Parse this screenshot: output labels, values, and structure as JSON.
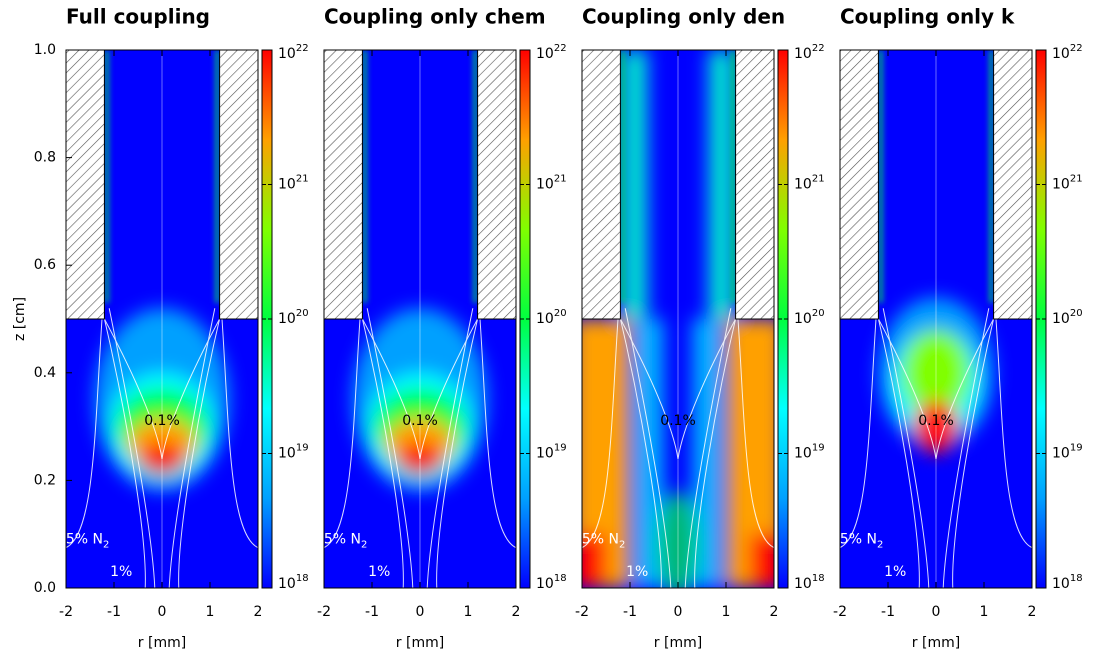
{
  "chart_data": [
    {
      "type": "heatmap",
      "title": "Full coupling",
      "xlabel": "r [mm]",
      "ylabel": "z [cm]",
      "xlim": [
        -2,
        2
      ],
      "ylim": [
        0,
        1
      ],
      "xticks": [
        -2,
        -1,
        0,
        1,
        2
      ],
      "yticks": [
        {
          "value": 0,
          "label": "0.0"
        },
        0.2,
        0.4,
        0.6,
        0.8,
        {
          "value": 1,
          "label": "1.0"
        }
      ],
      "colorbar": {
        "log": true,
        "lim": [
          1e+18,
          1e+22
        ],
        "ticks": [
          {
            "value": 1e+18,
            "label": "10",
            "sup": "18"
          },
          {
            "value": 1e+19,
            "label": "10",
            "sup": "19"
          },
          {
            "value": 1e+20,
            "label": "10",
            "sup": "20"
          },
          {
            "value": 1e+21,
            "label": "10",
            "sup": "21"
          },
          {
            "value": 1e+22,
            "label": "10",
            "sup": "22"
          }
        ],
        "colors": [
          "#0000ff",
          "#00a0ff",
          "#00ffff",
          "#00ff40",
          "#80ff00",
          "#ffa000",
          "#ff0000"
        ]
      },
      "annotations": [
        {
          "text": "0.1%",
          "x": 0,
          "y": 0.31
        },
        {
          "text": "5% N",
          "sub": "2",
          "x": -1.55,
          "y": 0.09
        },
        {
          "text": "1%",
          "x": -0.85,
          "y": 0.03
        }
      ]
    },
    {
      "type": "heatmap",
      "title": "Coupling only chem",
      "xlabel": "r [mm]",
      "xlim": [
        -2,
        2
      ],
      "ylim": [
        0,
        1
      ],
      "xticks": [
        -2,
        -1,
        0,
        1,
        2
      ],
      "colorbar": {
        "log": true,
        "lim": [
          1e+18,
          1e+22
        ],
        "ticks": [
          {
            "value": 1e+18,
            "label": "10",
            "sup": "18"
          },
          {
            "value": 1e+19,
            "label": "10",
            "sup": "19"
          },
          {
            "value": 1e+20,
            "label": "10",
            "sup": "20"
          },
          {
            "value": 1e+21,
            "label": "10",
            "sup": "21"
          },
          {
            "value": 1e+22,
            "label": "10",
            "sup": "22"
          }
        ],
        "colors": [
          "#0000ff",
          "#00a0ff",
          "#00ffff",
          "#00ff40",
          "#80ff00",
          "#ffa000",
          "#ff0000"
        ]
      },
      "annotations": [
        {
          "text": "0.1%",
          "x": 0,
          "y": 0.31
        },
        {
          "text": "5% N",
          "sub": "2",
          "x": -1.55,
          "y": 0.09
        },
        {
          "text": "1%",
          "x": -0.85,
          "y": 0.03
        }
      ]
    },
    {
      "type": "heatmap",
      "title": "Coupling only den",
      "xlabel": "r [mm]",
      "xlim": [
        -2,
        2
      ],
      "ylim": [
        0,
        1
      ],
      "xticks": [
        -2,
        -1,
        0,
        1,
        2
      ],
      "colorbar": {
        "log": true,
        "lim": [
          1e+18,
          1e+22
        ],
        "ticks": [
          {
            "value": 1e+18,
            "label": "10",
            "sup": "18"
          },
          {
            "value": 1e+19,
            "label": "10",
            "sup": "19"
          },
          {
            "value": 1e+20,
            "label": "10",
            "sup": "20"
          },
          {
            "value": 1e+21,
            "label": "10",
            "sup": "21"
          },
          {
            "value": 1e+22,
            "label": "10",
            "sup": "22"
          }
        ],
        "colors": [
          "#0000ff",
          "#00a0ff",
          "#00ffff",
          "#00ff40",
          "#80ff00",
          "#ffa000",
          "#ff0000"
        ]
      },
      "annotations": [
        {
          "text": "0.1%",
          "x": 0,
          "y": 0.31
        },
        {
          "text": "5% N",
          "sub": "2",
          "x": -1.55,
          "y": 0.09
        },
        {
          "text": "1%",
          "x": -0.85,
          "y": 0.03
        }
      ]
    },
    {
      "type": "heatmap",
      "title": "Coupling only k",
      "xlabel": "r [mm]",
      "xlim": [
        -2,
        2
      ],
      "ylim": [
        0,
        1
      ],
      "xticks": [
        -2,
        -1,
        0,
        1,
        2
      ],
      "colorbar": {
        "log": true,
        "lim": [
          1e+18,
          1e+22
        ],
        "ticks": [
          {
            "value": 1e+18,
            "label": "10",
            "sup": "18"
          },
          {
            "value": 1e+19,
            "label": "10",
            "sup": "19"
          },
          {
            "value": 1e+20,
            "label": "10",
            "sup": "20"
          },
          {
            "value": 1e+21,
            "label": "10",
            "sup": "21"
          },
          {
            "value": 1e+22,
            "label": "10",
            "sup": "22"
          }
        ],
        "colors": [
          "#0000ff",
          "#00a0ff",
          "#00ffff",
          "#00ff40",
          "#80ff00",
          "#ffa000",
          "#ff0000"
        ]
      },
      "annotations": [
        {
          "text": "0.1%",
          "x": 0,
          "y": 0.31
        },
        {
          "text": "5% N",
          "sub": "2",
          "x": -1.55,
          "y": 0.09
        },
        {
          "text": "1%",
          "x": -0.85,
          "y": 0.03
        }
      ]
    }
  ]
}
